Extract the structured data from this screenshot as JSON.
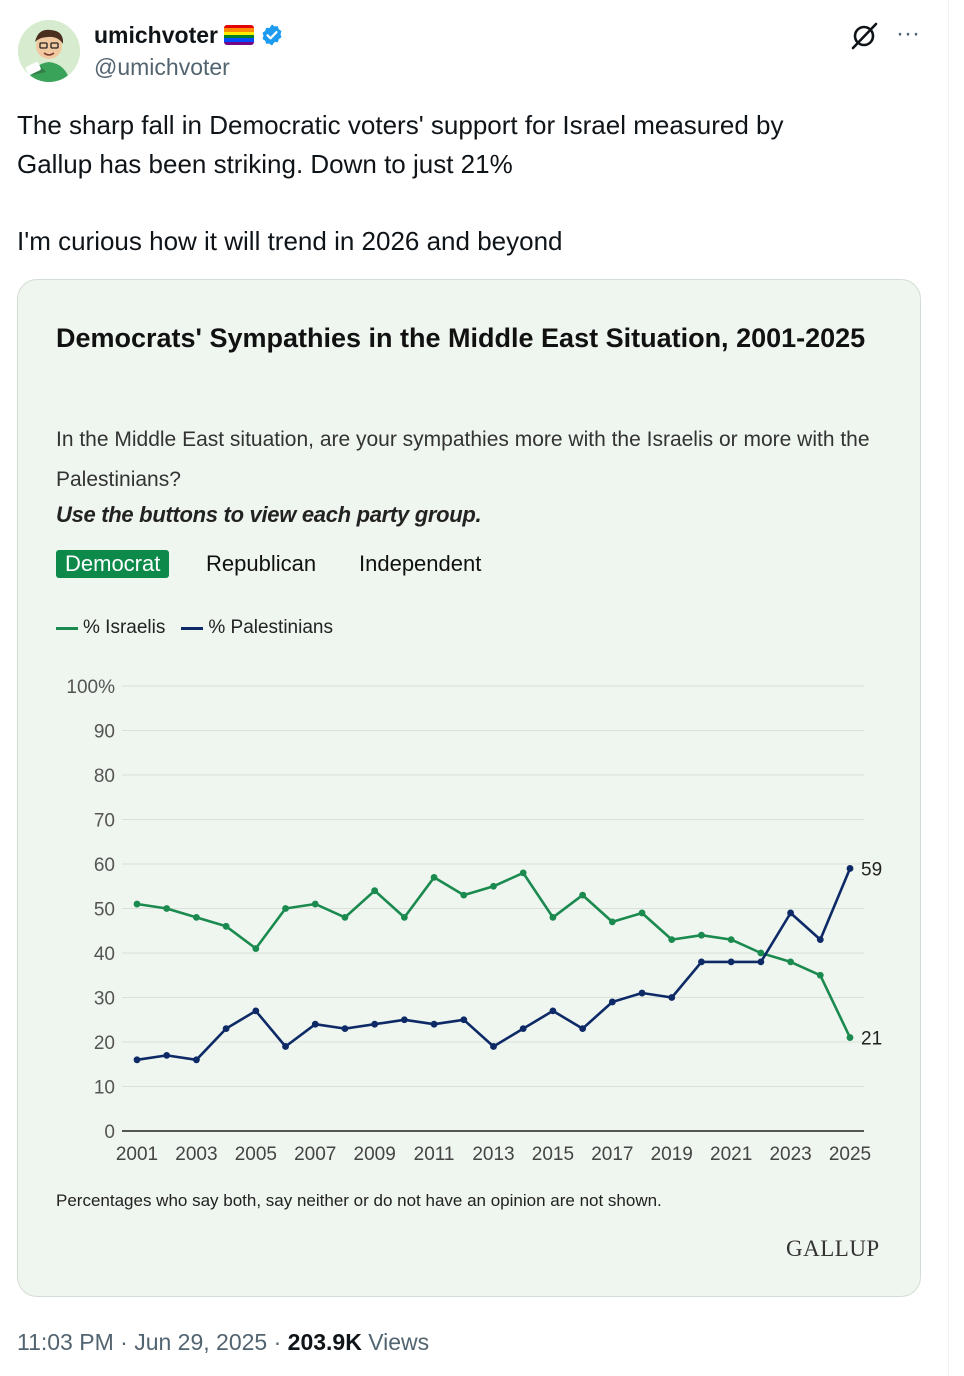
{
  "tweet": {
    "display_name": "umichvoter",
    "handle": "@umichvoter",
    "text_lines": [
      "The sharp fall in Democratic voters' support for Israel measured by",
      "Gallup has been striking. Down to just 21%"
    ],
    "text_line_2": "I'm curious how it will trend in 2026 and beyond",
    "time": "11:03 PM",
    "date": "Jun 29, 2025",
    "views": "203.9K",
    "views_label": "Views",
    "separator": "·"
  },
  "chart_card": {
    "title": "Democrats' Sympathies in the Middle East Situation, 2001-2025",
    "subtitle": "In the Middle East situation, are your sympathies more with the Israelis or more with the Palestinians?",
    "instruction": "Use the buttons to view each party group.",
    "buttons": [
      "Democrat",
      "Republican",
      "Independent"
    ],
    "active_button": "Democrat",
    "footnote": "Percentages who say both, say neither or do not have an opinion are not shown.",
    "brand": "GALLUP"
  },
  "colors": {
    "israelis": "#1a8a4f",
    "palestinians": "#0d2a66",
    "accent": "#0d8a4a",
    "card_bg": "#eff5ef"
  },
  "chart_data": {
    "type": "line",
    "title": "Democrats' Sympathies in the Middle East Situation, 2001-2025",
    "x": [
      2001,
      2002,
      2003,
      2004,
      2005,
      2006,
      2007,
      2008,
      2009,
      2010,
      2011,
      2012,
      2013,
      2014,
      2015,
      2016,
      2017,
      2018,
      2019,
      2020,
      2021,
      2022,
      2023,
      2024,
      2025
    ],
    "x_tick_labels": [
      "2001",
      "2003",
      "2005",
      "2007",
      "2009",
      "2011",
      "2013",
      "2015",
      "2017",
      "2019",
      "2021",
      "2023",
      "2025"
    ],
    "y_tick_labels": [
      "100%",
      "90",
      "80",
      "70",
      "60",
      "50",
      "40",
      "30",
      "20",
      "10",
      "0"
    ],
    "y_ticks": [
      100,
      90,
      80,
      70,
      60,
      50,
      40,
      30,
      20,
      10,
      0
    ],
    "ylim": [
      0,
      100
    ],
    "grid": true,
    "legend_position": "top-left",
    "series": [
      {
        "name": "% Israelis",
        "color": "#1a8a4f",
        "values": [
          51,
          50,
          48,
          46,
          41,
          50,
          51,
          48,
          54,
          48,
          57,
          53,
          55,
          58,
          48,
          53,
          47,
          49,
          43,
          44,
          43,
          40,
          38,
          35,
          21
        ],
        "end_label": "21"
      },
      {
        "name": "% Palestinians",
        "color": "#0d2a66",
        "values": [
          16,
          17,
          16,
          23,
          27,
          19,
          24,
          23,
          24,
          25,
          24,
          25,
          19,
          23,
          27,
          23,
          29,
          31,
          30,
          38,
          38,
          38,
          49,
          43,
          59
        ],
        "end_label": "59"
      }
    ]
  }
}
